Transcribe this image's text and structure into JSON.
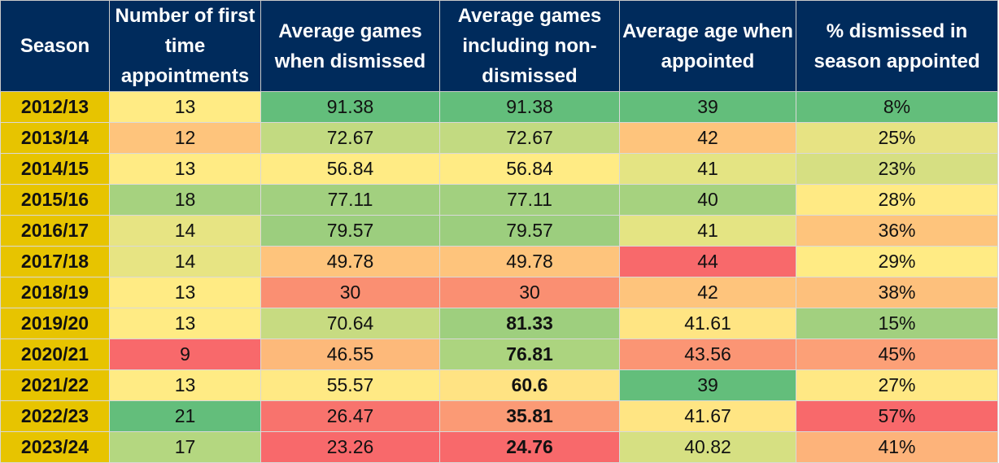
{
  "headers": [
    "Season",
    "Number of first time appointments",
    "Average games when dismissed",
    "Average games including non-dismissed",
    "Average age when appointed",
    "% dismissed in season appointed"
  ],
  "rows": [
    {
      "season": "2012/13",
      "appointments": "13",
      "avg_games_dismissed": "91.38",
      "avg_games_incl": "91.38",
      "avg_age": "39",
      "pct_dismissed": "8%"
    },
    {
      "season": "2013/14",
      "appointments": "12",
      "avg_games_dismissed": "72.67",
      "avg_games_incl": "72.67",
      "avg_age": "42",
      "pct_dismissed": "25%"
    },
    {
      "season": "2014/15",
      "appointments": "13",
      "avg_games_dismissed": "56.84",
      "avg_games_incl": "56.84",
      "avg_age": "41",
      "pct_dismissed": "23%"
    },
    {
      "season": "2015/16",
      "appointments": "18",
      "avg_games_dismissed": "77.11",
      "avg_games_incl": "77.11",
      "avg_age": "40",
      "pct_dismissed": "28%"
    },
    {
      "season": "2016/17",
      "appointments": "14",
      "avg_games_dismissed": "79.57",
      "avg_games_incl": "79.57",
      "avg_age": "41",
      "pct_dismissed": "36%"
    },
    {
      "season": "2017/18",
      "appointments": "14",
      "avg_games_dismissed": "49.78",
      "avg_games_incl": "49.78",
      "avg_age": "44",
      "pct_dismissed": "29%"
    },
    {
      "season": "2018/19",
      "appointments": "13",
      "avg_games_dismissed": "30",
      "avg_games_incl": "30",
      "avg_age": "42",
      "pct_dismissed": "38%"
    },
    {
      "season": "2019/20",
      "appointments": "13",
      "avg_games_dismissed": "70.64",
      "avg_games_incl": "81.33",
      "avg_age": "41.61",
      "pct_dismissed": "15%"
    },
    {
      "season": "2020/21",
      "appointments": "9",
      "avg_games_dismissed": "46.55",
      "avg_games_incl": "76.81",
      "avg_age": "43.56",
      "pct_dismissed": "45%"
    },
    {
      "season": "2021/22",
      "appointments": "13",
      "avg_games_dismissed": "55.57",
      "avg_games_incl": "60.6",
      "avg_age": "39",
      "pct_dismissed": "27%"
    },
    {
      "season": "2022/23",
      "appointments": "21",
      "avg_games_dismissed": "26.47",
      "avg_games_incl": "35.81",
      "avg_age": "41.67",
      "pct_dismissed": "57%"
    },
    {
      "season": "2023/24",
      "appointments": "17",
      "avg_games_dismissed": "23.26",
      "avg_games_incl": "24.76",
      "avg_age": "40.82",
      "pct_dismissed": "41%"
    }
  ],
  "cell_colors": [
    [
      "#ffeb84",
      "#63be7b",
      "#63be7b",
      "#63be7b",
      "#63be7b"
    ],
    [
      "#fec47c",
      "#c2da81",
      "#c2da81",
      "#fec47c",
      "#e7e383"
    ],
    [
      "#ffeb84",
      "#ffeb84",
      "#ffeb84",
      "#e4e483",
      "#d6df82"
    ],
    [
      "#a6d27f",
      "#a2d07f",
      "#a2d07f",
      "#a6d27f",
      "#ffea84"
    ],
    [
      "#e7e483",
      "#9cce7e",
      "#9cce7e",
      "#e4e483",
      "#fec47c"
    ],
    [
      "#e7e483",
      "#fec47c",
      "#fec47c",
      "#f8696b",
      "#ffeb84"
    ],
    [
      "#ffeb84",
      "#fa8f72",
      "#fa8f72",
      "#fec47c",
      "#fdc07c"
    ],
    [
      "#ffeb84",
      "#c7db81",
      "#9ecf7e",
      "#ffe583",
      "#a2d07f"
    ],
    [
      "#f8696b",
      "#fdb97a",
      "#acd47f",
      "#fb9574",
      "#fca077"
    ],
    [
      "#ffeb84",
      "#ffe984",
      "#ffe383",
      "#63be7b",
      "#ffe884"
    ],
    [
      "#63be7b",
      "#f8736d",
      "#fb9a75",
      "#ffe583",
      "#f8696b"
    ],
    [
      "#b4d780",
      "#f8696b",
      "#f8696b",
      "#d6e082",
      "#fdb37a"
    ]
  ],
  "bold_cells": [
    [
      false,
      false,
      false,
      false,
      false
    ],
    [
      false,
      false,
      false,
      false,
      false
    ],
    [
      false,
      false,
      false,
      false,
      false
    ],
    [
      false,
      false,
      false,
      false,
      false
    ],
    [
      false,
      false,
      false,
      false,
      false
    ],
    [
      false,
      false,
      false,
      false,
      false
    ],
    [
      false,
      false,
      false,
      false,
      false
    ],
    [
      false,
      false,
      true,
      false,
      false
    ],
    [
      false,
      false,
      true,
      false,
      false
    ],
    [
      false,
      false,
      true,
      false,
      false
    ],
    [
      false,
      false,
      true,
      false,
      false
    ],
    [
      false,
      false,
      true,
      false,
      false
    ]
  ],
  "season_color": "#e7c400",
  "header_color": "#002b5c"
}
